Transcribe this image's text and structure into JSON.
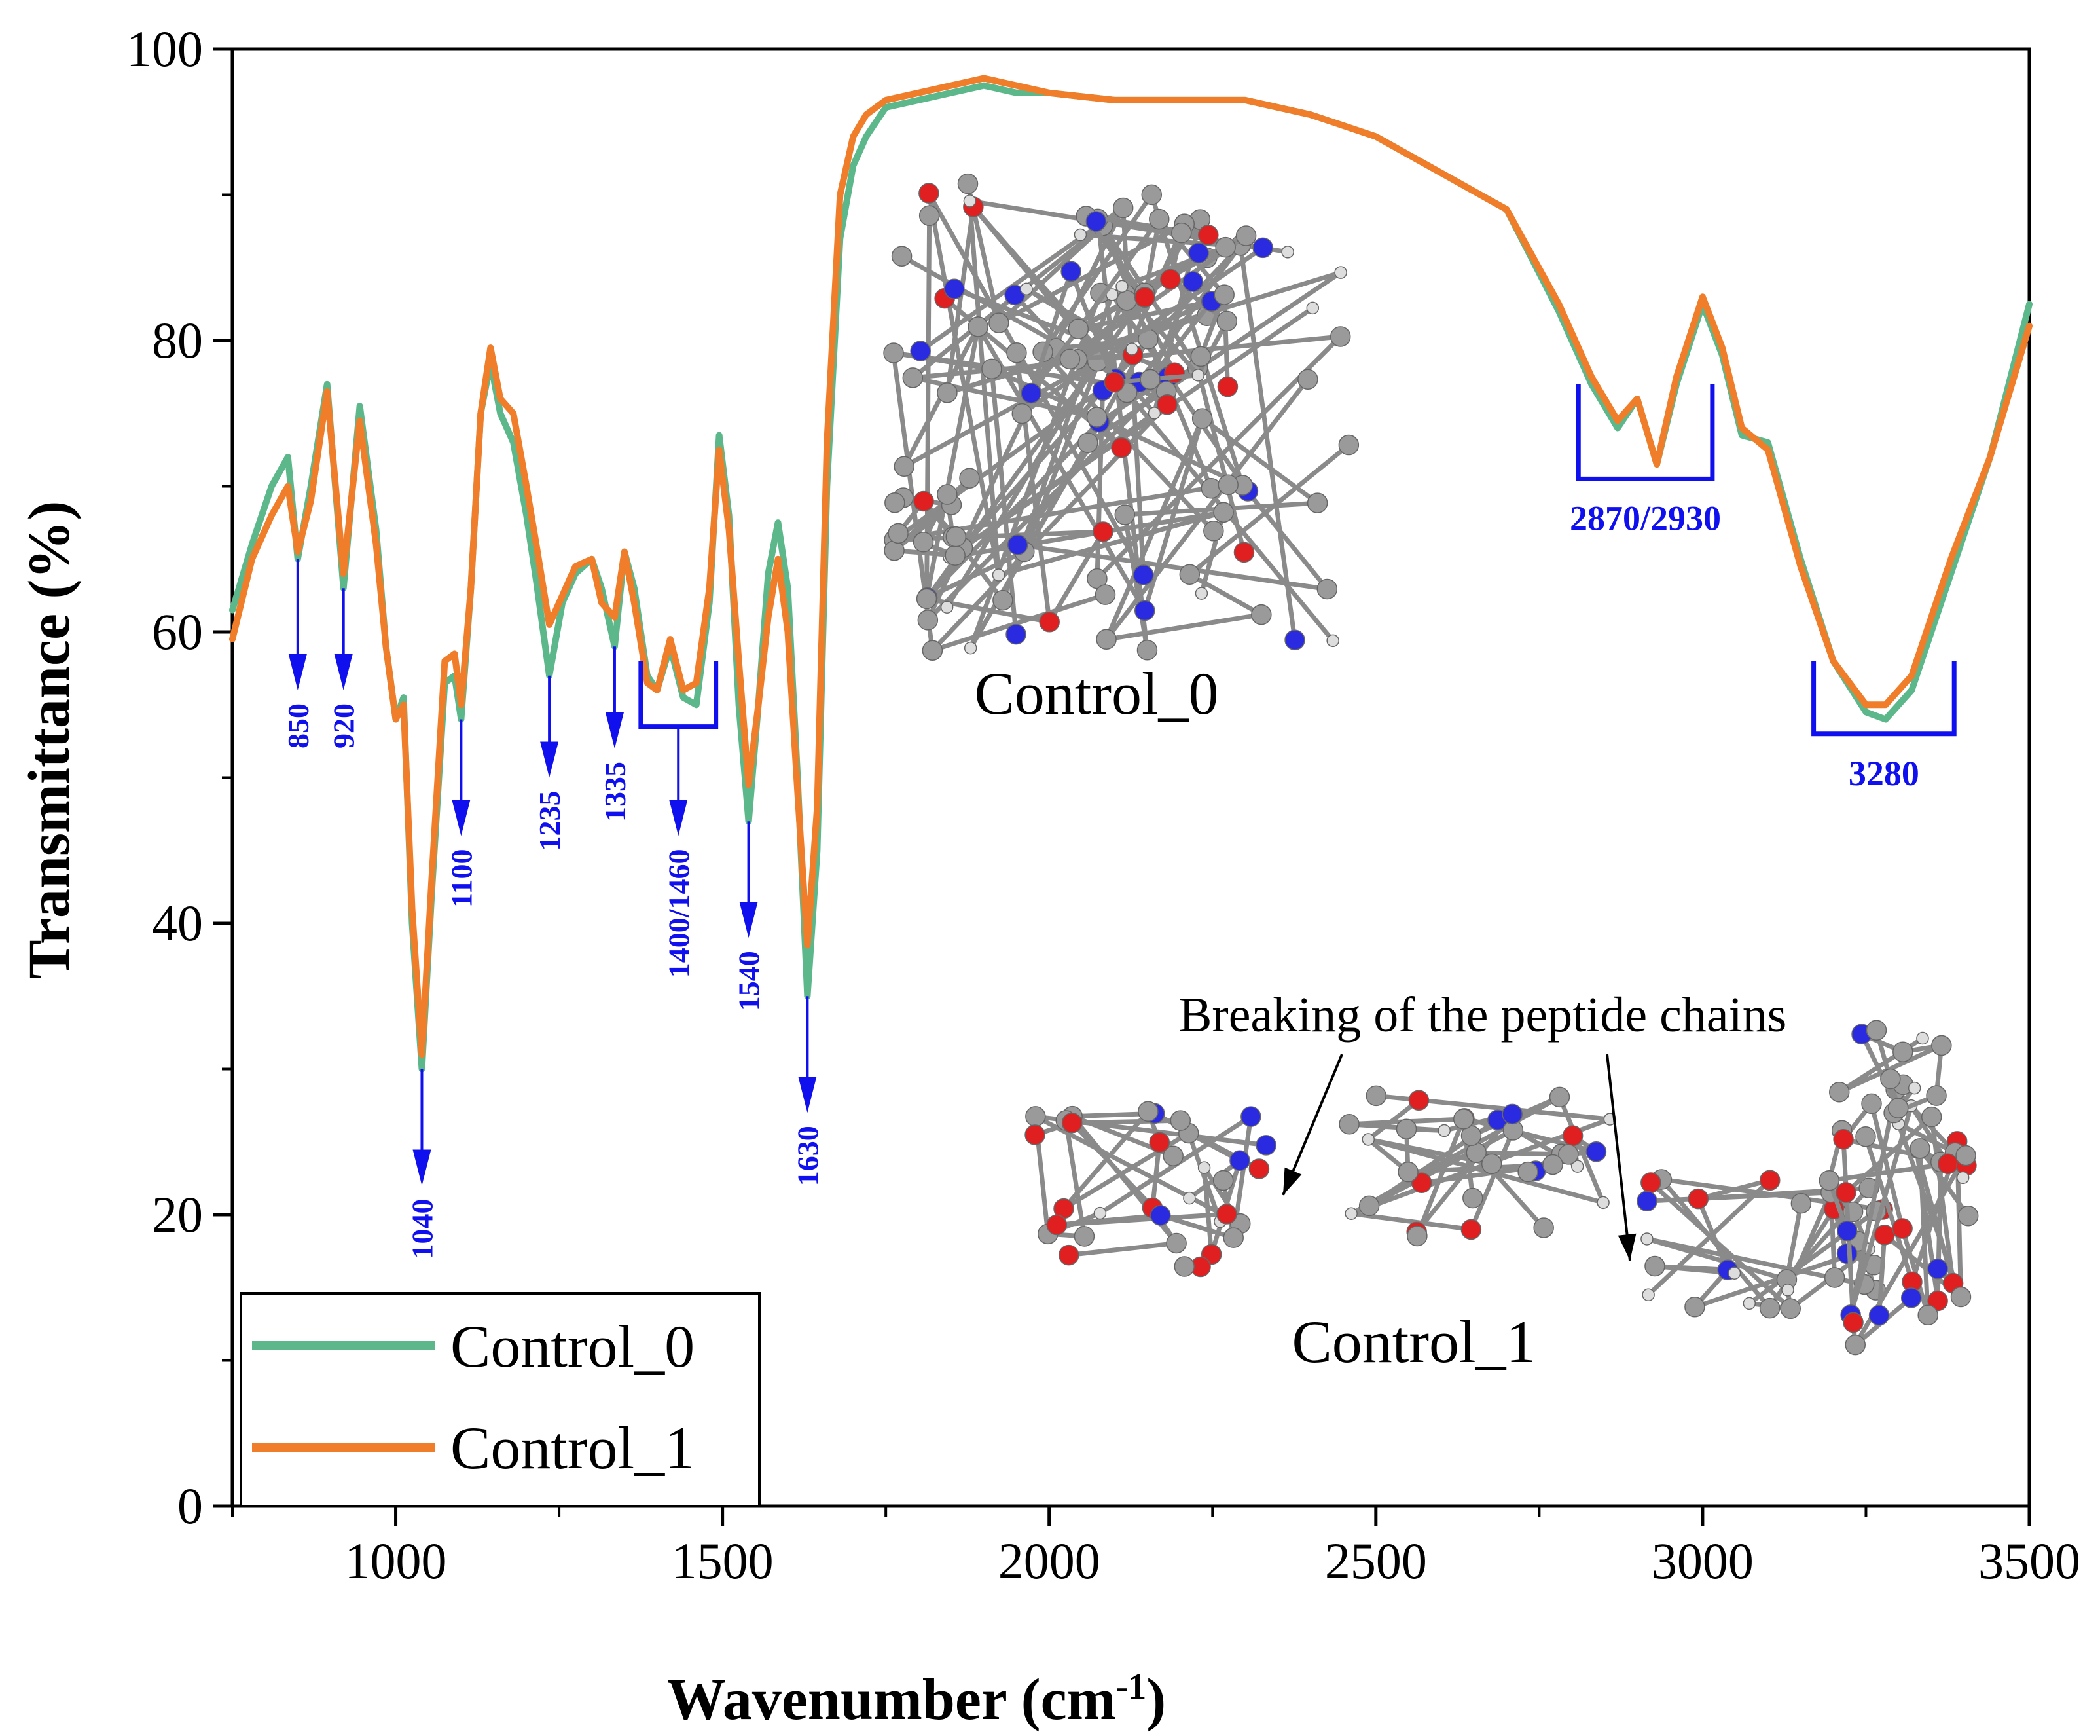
{
  "chart_data": {
    "type": "line",
    "xlabel": "Wavenumber (cm",
    "xlabel_sup": "-1",
    "xlabel_end": ")",
    "ylabel": "Transmittance (%)",
    "xlim": [
      750,
      3500
    ],
    "ylim": [
      0,
      100
    ],
    "xticks": [
      1000,
      1500,
      2000,
      2500,
      3000,
      3500
    ],
    "xtick_labels": [
      "1000",
      "1500",
      "2000",
      "2500",
      "3000",
      "3500"
    ],
    "yticks": [
      0,
      20,
      40,
      60,
      80,
      100
    ],
    "ytick_labels": [
      "0",
      "20",
      "40",
      "60",
      "80",
      "100"
    ],
    "legend_position": "bottom-left",
    "series": [
      {
        "name": "Control_0",
        "color": "#5cb88a",
        "points": [
          [
            750,
            61.5
          ],
          [
            780,
            66
          ],
          [
            810,
            70
          ],
          [
            835,
            72
          ],
          [
            850,
            65
          ],
          [
            870,
            70
          ],
          [
            895,
            77
          ],
          [
            920,
            63
          ],
          [
            945,
            75.5
          ],
          [
            970,
            67
          ],
          [
            985,
            59
          ],
          [
            1000,
            54
          ],
          [
            1012,
            55.5
          ],
          [
            1025,
            40
          ],
          [
            1040,
            30
          ],
          [
            1055,
            42
          ],
          [
            1075,
            56.5
          ],
          [
            1090,
            57
          ],
          [
            1100,
            54
          ],
          [
            1115,
            63
          ],
          [
            1130,
            75
          ],
          [
            1145,
            78.5
          ],
          [
            1160,
            75
          ],
          [
            1180,
            73
          ],
          [
            1200,
            68
          ],
          [
            1215,
            63.5
          ],
          [
            1235,
            57
          ],
          [
            1255,
            62
          ],
          [
            1275,
            64
          ],
          [
            1300,
            65
          ],
          [
            1315,
            63
          ],
          [
            1335,
            59
          ],
          [
            1350,
            65.5
          ],
          [
            1365,
            63
          ],
          [
            1385,
            57
          ],
          [
            1400,
            56
          ],
          [
            1420,
            59
          ],
          [
            1440,
            55.5
          ],
          [
            1460,
            55
          ],
          [
            1480,
            62
          ],
          [
            1495,
            73.5
          ],
          [
            1510,
            68
          ],
          [
            1525,
            55
          ],
          [
            1540,
            47
          ],
          [
            1555,
            55
          ],
          [
            1570,
            64
          ],
          [
            1585,
            67.5
          ],
          [
            1600,
            63
          ],
          [
            1615,
            50
          ],
          [
            1630,
            35
          ],
          [
            1645,
            45
          ],
          [
            1660,
            70
          ],
          [
            1680,
            87
          ],
          [
            1700,
            92
          ],
          [
            1720,
            94
          ],
          [
            1750,
            96
          ],
          [
            1800,
            96.5
          ],
          [
            1850,
            97
          ],
          [
            1900,
            97.5
          ],
          [
            1950,
            97
          ],
          [
            2000,
            97
          ],
          [
            2100,
            96.5
          ],
          [
            2200,
            96.5
          ],
          [
            2300,
            96.5
          ],
          [
            2400,
            95.5
          ],
          [
            2500,
            94
          ],
          [
            2600,
            91.5
          ],
          [
            2700,
            89
          ],
          [
            2780,
            82
          ],
          [
            2830,
            77
          ],
          [
            2870,
            74
          ],
          [
            2900,
            76
          ],
          [
            2930,
            71.5
          ],
          [
            2960,
            77
          ],
          [
            3000,
            82.5
          ],
          [
            3030,
            79
          ],
          [
            3060,
            73.5
          ],
          [
            3100,
            73
          ],
          [
            3150,
            65
          ],
          [
            3200,
            58
          ],
          [
            3250,
            54.5
          ],
          [
            3280,
            54
          ],
          [
            3320,
            56
          ],
          [
            3380,
            64
          ],
          [
            3440,
            72
          ],
          [
            3500,
            82.5
          ]
        ]
      },
      {
        "name": "Control_1",
        "color": "#f07d2a",
        "points": [
          [
            750,
            59.5
          ],
          [
            780,
            65
          ],
          [
            810,
            68
          ],
          [
            835,
            70
          ],
          [
            850,
            65.5
          ],
          [
            870,
            69
          ],
          [
            895,
            76.5
          ],
          [
            920,
            64
          ],
          [
            945,
            74.5
          ],
          [
            970,
            66
          ],
          [
            985,
            59
          ],
          [
            1000,
            54
          ],
          [
            1012,
            55
          ],
          [
            1025,
            41
          ],
          [
            1040,
            31
          ],
          [
            1055,
            43
          ],
          [
            1075,
            58
          ],
          [
            1090,
            58.5
          ],
          [
            1100,
            55
          ],
          [
            1115,
            63
          ],
          [
            1130,
            75
          ],
          [
            1145,
            79.5
          ],
          [
            1160,
            76
          ],
          [
            1180,
            75
          ],
          [
            1200,
            70
          ],
          [
            1215,
            66
          ],
          [
            1235,
            60.5
          ],
          [
            1255,
            62.5
          ],
          [
            1275,
            64.5
          ],
          [
            1300,
            65
          ],
          [
            1315,
            62
          ],
          [
            1335,
            61
          ],
          [
            1350,
            65.5
          ],
          [
            1365,
            62
          ],
          [
            1385,
            56.5
          ],
          [
            1400,
            56
          ],
          [
            1420,
            59.5
          ],
          [
            1440,
            56
          ],
          [
            1460,
            56.5
          ],
          [
            1480,
            63
          ],
          [
            1495,
            72.5
          ],
          [
            1510,
            67
          ],
          [
            1525,
            58
          ],
          [
            1540,
            49.5
          ],
          [
            1555,
            55
          ],
          [
            1570,
            61
          ],
          [
            1585,
            65
          ],
          [
            1600,
            60
          ],
          [
            1615,
            49
          ],
          [
            1630,
            38.5
          ],
          [
            1645,
            48
          ],
          [
            1660,
            73
          ],
          [
            1680,
            90
          ],
          [
            1700,
            94
          ],
          [
            1720,
            95.5
          ],
          [
            1750,
            96.5
          ],
          [
            1800,
            97
          ],
          [
            1850,
            97.5
          ],
          [
            1900,
            98
          ],
          [
            1950,
            97.5
          ],
          [
            2000,
            97
          ],
          [
            2100,
            96.5
          ],
          [
            2200,
            96.5
          ],
          [
            2300,
            96.5
          ],
          [
            2400,
            95.5
          ],
          [
            2500,
            94
          ],
          [
            2600,
            91.5
          ],
          [
            2700,
            89
          ],
          [
            2780,
            82.5
          ],
          [
            2830,
            77.5
          ],
          [
            2870,
            74.5
          ],
          [
            2900,
            76
          ],
          [
            2930,
            71.5
          ],
          [
            2960,
            77.5
          ],
          [
            3000,
            83
          ],
          [
            3030,
            79.5
          ],
          [
            3060,
            74
          ],
          [
            3100,
            72.5
          ],
          [
            3150,
            64.5
          ],
          [
            3200,
            58
          ],
          [
            3250,
            55
          ],
          [
            3280,
            55
          ],
          [
            3320,
            57
          ],
          [
            3380,
            65
          ],
          [
            3440,
            72
          ],
          [
            3500,
            81
          ]
        ]
      }
    ],
    "arrow_annotations": [
      {
        "label": "850",
        "x": 850,
        "y_start": 65,
        "y_end": 56
      },
      {
        "label": "920",
        "x": 920,
        "y_start": 63,
        "y_end": 56
      },
      {
        "label": "1040",
        "x": 1040,
        "y_start": 30,
        "y_end": 22
      },
      {
        "label": "1100",
        "x": 1100,
        "y_start": 54,
        "y_end": 46
      },
      {
        "label": "1235",
        "x": 1235,
        "y_start": 57,
        "y_end": 50
      },
      {
        "label": "1335",
        "x": 1335,
        "y_start": 59,
        "y_end": 52
      },
      {
        "label": "1540",
        "x": 1540,
        "y_start": 47,
        "y_end": 39
      },
      {
        "label": "1630",
        "x": 1630,
        "y_start": 35,
        "y_end": 27
      }
    ],
    "bracket_annotations": [
      {
        "label": "1400/1460",
        "x1": 1375,
        "x2": 1490,
        "y_top": 58,
        "y_bottom": 53.5,
        "arrow_to": 46,
        "label_position": "below-arrow-rotated"
      },
      {
        "label": "2870/2930",
        "x1": 2810,
        "x2": 3015,
        "y_top": 77,
        "y_bottom": 70.5,
        "label_position": "below"
      },
      {
        "label": "3280",
        "x1": 3170,
        "x2": 3385,
        "y_top": 58,
        "y_bottom": 53,
        "label_position": "below"
      }
    ],
    "molecule_labels": [
      "Control_0",
      "Control_1"
    ],
    "note": "Breaking of the peptide chains"
  },
  "colors": {
    "annotation": "#1010ee",
    "axis": "#000000"
  }
}
